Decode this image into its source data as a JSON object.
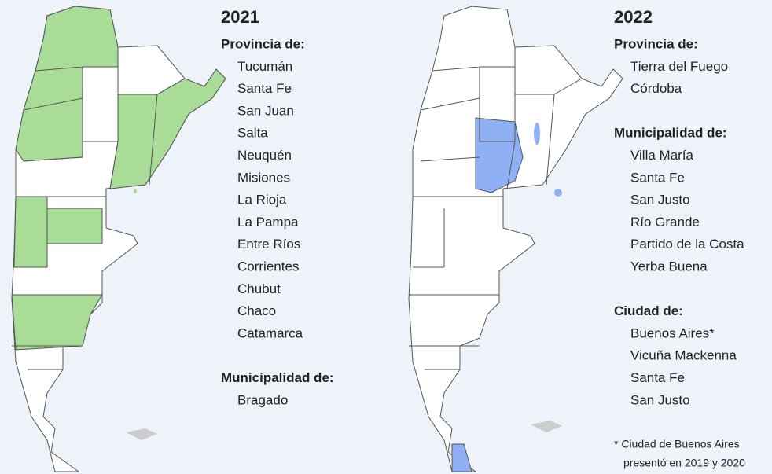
{
  "panels": [
    {
      "year": "2021",
      "groups": [
        {
          "heading": "Provincia de:",
          "items": [
            "Tucumán",
            "Santa Fe",
            "San Juan",
            "Salta",
            "Neuquén",
            "Misiones",
            "La Rioja",
            "La Pampa",
            "Entre Ríos",
            "Corrientes",
            "Chubut",
            "Chaco",
            "Catamarca"
          ]
        },
        {
          "heading": "Municipalidad de:",
          "items": [
            "Bragado"
          ]
        }
      ]
    },
    {
      "year": "2022",
      "groups": [
        {
          "heading": "Provincia de:",
          "items": [
            "Tierra del Fuego",
            "Córdoba"
          ]
        },
        {
          "heading": "Municipalidad de:",
          "items": [
            "Villa María",
            "Santa Fe",
            "San Justo",
            "Río Grande",
            "Partido de la Costa",
            "Yerba Buena"
          ]
        },
        {
          "heading": "Ciudad de:",
          "items": [
            "Buenos Aires*",
            "Vicuña Mackenna",
            "Santa Fe",
            "San Justo"
          ]
        }
      ]
    }
  ],
  "footnote": [
    "* Ciudad de Buenos Aires",
    "presentó en 2019 y 2020"
  ]
}
